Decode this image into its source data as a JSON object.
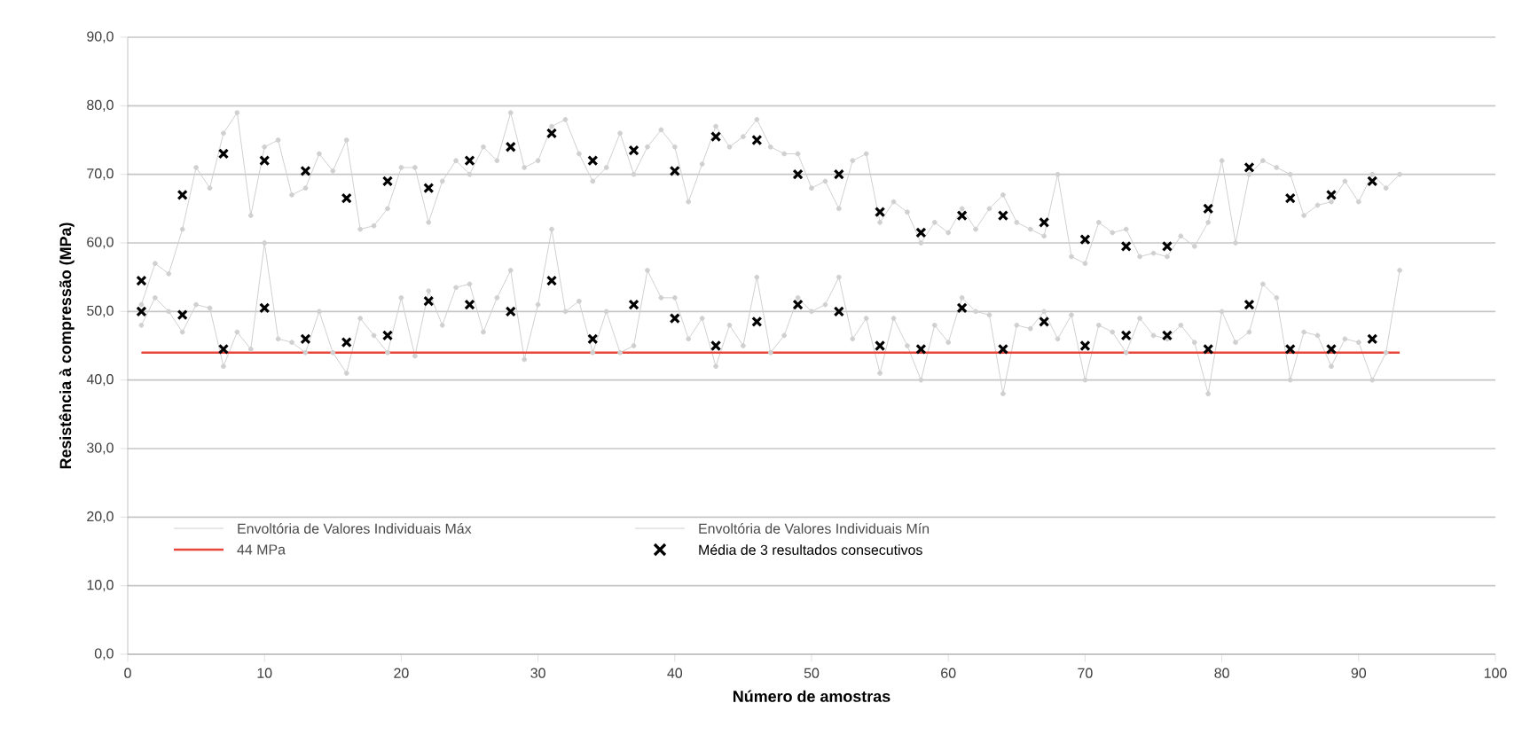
{
  "chart_data": {
    "type": "line",
    "xlabel": "Número de amostras",
    "ylabel": "Resistência à compressão (MPa)",
    "xlim": [
      0,
      100
    ],
    "xticks": [
      0,
      10,
      20,
      30,
      40,
      50,
      60,
      70,
      80,
      90,
      100
    ],
    "ylim": [
      0,
      90
    ],
    "yticks": [
      {
        "value": 0,
        "label": "0,0"
      },
      {
        "value": 10,
        "label": "10,0"
      },
      {
        "value": 20,
        "label": "20,0"
      },
      {
        "value": 30,
        "label": "30,0"
      },
      {
        "value": 40,
        "label": "40,0"
      },
      {
        "value": 50,
        "label": "50,0"
      },
      {
        "value": 60,
        "label": "60,0"
      },
      {
        "value": 70,
        "label": "70,0"
      },
      {
        "value": 80,
        "label": "80,0"
      },
      {
        "value": 90,
        "label": "90,0"
      }
    ],
    "grid": "y",
    "legend": "bottom",
    "series": [
      {
        "name": "Envoltória de Valores Individuais Máx",
        "color": "#d0d0d0",
        "marker": "circle",
        "x": [
          1,
          2,
          3,
          4,
          5,
          6,
          7,
          8,
          9,
          10,
          11,
          12,
          13,
          14,
          15,
          16,
          17,
          18,
          19,
          20,
          21,
          22,
          23,
          24,
          25,
          26,
          27,
          28,
          29,
          30,
          31,
          32,
          33,
          34,
          35,
          36,
          37,
          38,
          39,
          40,
          41,
          42,
          43,
          44,
          45,
          46,
          47,
          48,
          49,
          50,
          51,
          52,
          53,
          54,
          55,
          56,
          57,
          58,
          59,
          60,
          61,
          62,
          63,
          64,
          65,
          66,
          67,
          68,
          69,
          70,
          71,
          72,
          73,
          74,
          75,
          76,
          77,
          78,
          79,
          80,
          81,
          82,
          83,
          84,
          85,
          86,
          87,
          88,
          89,
          90,
          91,
          92,
          93
        ],
        "values": [
          51,
          57,
          55.5,
          62,
          71,
          68,
          76,
          79,
          64,
          74,
          75,
          67,
          68,
          73,
          70.5,
          75,
          62,
          62.5,
          65,
          71,
          71,
          63,
          69,
          72,
          70,
          74,
          72,
          79,
          71,
          72,
          77,
          78,
          73,
          69,
          71,
          76,
          70,
          74,
          76.5,
          74,
          66,
          71.5,
          77,
          74,
          75.5,
          78,
          74,
          73,
          73,
          68,
          69,
          65,
          72,
          73,
          63,
          66,
          64.5,
          60,
          63,
          61.5,
          65,
          62,
          65,
          67,
          63,
          62,
          61,
          70,
          58,
          57,
          63,
          61.5,
          62,
          58,
          58.5,
          58,
          61,
          59.5,
          63,
          72,
          60,
          70,
          72,
          71,
          70,
          64,
          65.5,
          66,
          69,
          66,
          70,
          68,
          70
        ]
      },
      {
        "name": "Envoltória de Valores Individuais Mín",
        "color": "#d0d0d0",
        "marker": "circle",
        "x": [
          1,
          2,
          3,
          4,
          5,
          6,
          7,
          8,
          9,
          10,
          11,
          12,
          13,
          14,
          15,
          16,
          17,
          18,
          19,
          20,
          21,
          22,
          23,
          24,
          25,
          26,
          27,
          28,
          29,
          30,
          31,
          32,
          33,
          34,
          35,
          36,
          37,
          38,
          39,
          40,
          41,
          42,
          43,
          44,
          45,
          46,
          47,
          48,
          49,
          50,
          51,
          52,
          53,
          54,
          55,
          56,
          57,
          58,
          59,
          60,
          61,
          62,
          63,
          64,
          65,
          66,
          67,
          68,
          69,
          70,
          71,
          72,
          73,
          74,
          75,
          76,
          77,
          78,
          79,
          80,
          81,
          82,
          83,
          84,
          85,
          86,
          87,
          88,
          89,
          90,
          91,
          92,
          93
        ],
        "values": [
          48,
          52,
          50,
          47,
          51,
          50.5,
          42,
          47,
          44.5,
          60,
          46,
          45.5,
          44,
          50,
          44,
          41,
          49,
          46.5,
          44,
          52,
          43.5,
          53,
          48,
          53.5,
          54,
          47,
          52,
          56,
          43,
          51,
          62,
          50,
          51.5,
          44,
          50,
          44,
          45,
          56,
          52,
          52,
          46,
          49,
          42,
          48,
          45,
          55,
          44,
          46.5,
          52,
          50,
          51,
          55,
          46,
          49,
          41,
          49,
          45,
          40,
          48,
          45.5,
          52,
          50,
          49.5,
          38,
          48,
          47.5,
          50,
          46,
          49.5,
          40,
          48,
          47,
          44,
          49,
          46.5,
          46,
          48,
          45.5,
          38,
          50,
          45.5,
          47,
          54,
          52,
          40,
          47,
          46.5,
          42,
          46,
          45.5,
          40,
          44,
          56
        ]
      },
      {
        "name": "44 MPa",
        "color": "#e8463a",
        "marker": "none",
        "x": [
          1,
          93
        ],
        "values": [
          44,
          44
        ]
      },
      {
        "name": "Média de 3 resultados consecutivos",
        "type": "scatter",
        "color": "#000000",
        "marker": "cross",
        "x": [
          1,
          4,
          7,
          10,
          13,
          16,
          19,
          22,
          25,
          28,
          31,
          34,
          37,
          40,
          43,
          46,
          49,
          52,
          55,
          58,
          61,
          64,
          67,
          70,
          73,
          76,
          79,
          82,
          85,
          88,
          91,
          1,
          4,
          7,
          10,
          13,
          16,
          19,
          22,
          25,
          28,
          31,
          34,
          37,
          40,
          43,
          46,
          49,
          52,
          55,
          58,
          61,
          64,
          67,
          70,
          73,
          76,
          79,
          82,
          85,
          88,
          91
        ],
        "values": [
          54.5,
          67,
          73,
          72,
          70.5,
          66.5,
          69,
          68,
          72,
          74,
          76,
          72,
          73.5,
          70.5,
          75.5,
          75,
          70,
          70,
          64.5,
          61.5,
          64,
          64,
          63,
          60.5,
          59.5,
          59.5,
          65,
          71,
          66.5,
          67,
          69,
          50,
          49.5,
          44.5,
          50.5,
          46,
          45.5,
          46.5,
          51.5,
          51,
          50,
          54.5,
          46,
          51,
          49,
          45,
          48.5,
          51,
          50,
          45,
          44.5,
          50.5,
          44.5,
          48.5,
          45,
          46.5,
          46.5,
          44.5,
          51,
          44.5,
          44.5,
          46
        ]
      }
    ]
  }
}
